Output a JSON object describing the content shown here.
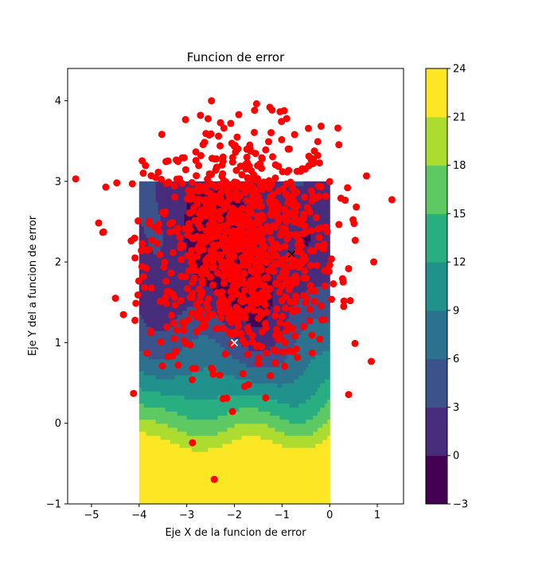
{
  "chart_data": {
    "type": "scatter",
    "title": "Funcion de error",
    "xlabel": "Eje X de la funcion de error",
    "ylabel": "Eje Y del a funcion de error",
    "xlim": [
      -5.5,
      1.55
    ],
    "ylim": [
      -1.0,
      4.4
    ],
    "xticks": [
      -5,
      -4,
      -3,
      -2,
      -1,
      0,
      1
    ],
    "yticks": [
      -1,
      0,
      1,
      2,
      3,
      4
    ],
    "grid": false,
    "legend": "none",
    "contour": {
      "type": "filled-contour",
      "x_range": [
        -4,
        0
      ],
      "y_range": [
        -1,
        3
      ],
      "levels": [
        -3,
        0,
        3,
        6,
        9,
        12,
        15,
        18,
        21,
        24
      ],
      "level_colors": [
        "#440154",
        "#472d7b",
        "#3b528b",
        "#2c728e",
        "#21918c",
        "#28ae80",
        "#5ec962",
        "#addc30",
        "#fde725"
      ],
      "colormap": "viridis"
    },
    "colorbar": {
      "ticks": [
        -3,
        0,
        3,
        6,
        9,
        12,
        15,
        18,
        21,
        24
      ]
    },
    "markers": [
      {
        "x": -0.8,
        "y": 2.1,
        "symbol": "x",
        "color": "#000000"
      },
      {
        "x": -2.0,
        "y": 1.0,
        "symbol": "x",
        "color": "#ffffff"
      }
    ],
    "scatter": {
      "color": "#ff0000",
      "count": 1000,
      "center": [
        -1.85,
        2.2
      ],
      "std": [
        1.0,
        0.72
      ]
    }
  }
}
